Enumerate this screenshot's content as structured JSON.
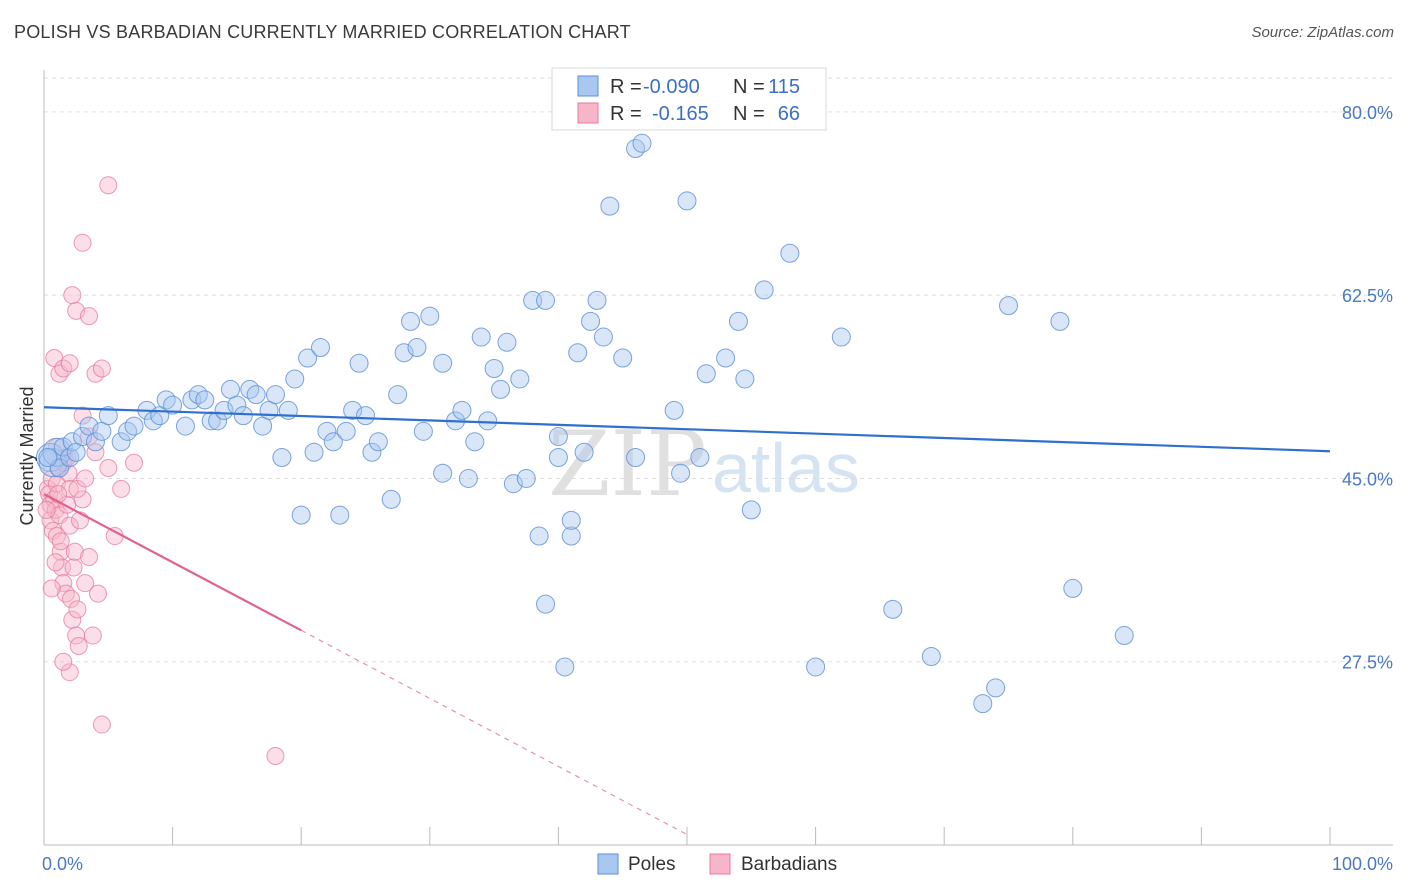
{
  "header": {
    "title": "POLISH VS BARBADIAN CURRENTLY MARRIED CORRELATION CHART",
    "source": "Source: ZipAtlas.com"
  },
  "legend": {
    "r_label": "R =",
    "n_label": "N =",
    "poles_r": "-0.090",
    "poles_n": "115",
    "barb_r": "-0.165",
    "barb_n": "66"
  },
  "watermark": {
    "zip": "ZIP",
    "atlas": "atlas"
  },
  "colors": {
    "poles_fill": "#a9c8f0",
    "poles_stroke": "#5b8fd8",
    "poles_line": "#2f6fcd",
    "barb_fill": "#f7b5c9",
    "barb_stroke": "#e8799c",
    "barb_line": "#e0628e",
    "tick_text": "#4a78c4",
    "grid": "#dddddd"
  },
  "chart_data": {
    "type": "scatter",
    "title": "POLISH VS BARBADIAN CURRENTLY MARRIED CORRELATION CHART",
    "xlabel": "",
    "ylabel": "Currently Married",
    "xlim": [
      0,
      100
    ],
    "ylim": [
      10,
      84
    ],
    "x_tick_labels": [
      "0.0%",
      "100.0%"
    ],
    "y_ticks": [
      27.5,
      45.0,
      62.5,
      80.0
    ],
    "y_tick_labels": [
      "27.5%",
      "45.0%",
      "62.5%",
      "80.0%"
    ],
    "series": [
      {
        "name": "Poles",
        "r": -0.09,
        "n": 115,
        "trend": {
          "x": [
            0,
            100
          ],
          "y": [
            51.8,
            47.6
          ],
          "dashed_from": null
        },
        "points": [
          [
            0.5,
            47
          ],
          [
            0.7,
            46.5
          ],
          [
            1,
            47.5
          ],
          [
            1.2,
            46
          ],
          [
            1.5,
            48
          ],
          [
            2,
            47
          ],
          [
            2.2,
            48.5
          ],
          [
            2.5,
            47.5
          ],
          [
            3,
            49
          ],
          [
            3.5,
            50
          ],
          [
            4,
            48.5
          ],
          [
            4.5,
            49.5
          ],
          [
            5,
            51
          ],
          [
            6,
            48.5
          ],
          [
            6.5,
            49.5
          ],
          [
            7,
            50
          ],
          [
            8,
            51.5
          ],
          [
            8.5,
            50.5
          ],
          [
            9,
            51
          ],
          [
            9.5,
            52.5
          ],
          [
            10,
            52
          ],
          [
            11,
            50
          ],
          [
            11.5,
            52.5
          ],
          [
            12,
            53
          ],
          [
            12.5,
            52.5
          ],
          [
            13,
            50.5
          ],
          [
            13.5,
            50.5
          ],
          [
            14,
            51.5
          ],
          [
            14.5,
            53.5
          ],
          [
            15,
            52
          ],
          [
            15.5,
            51
          ],
          [
            16,
            53.5
          ],
          [
            16.5,
            53
          ],
          [
            17,
            50
          ],
          [
            17.5,
            51.5
          ],
          [
            18,
            53
          ],
          [
            18.5,
            47
          ],
          [
            19,
            51.5
          ],
          [
            19.5,
            54.5
          ],
          [
            20,
            41.5
          ],
          [
            20.5,
            56.5
          ],
          [
            21,
            47.5
          ],
          [
            21.5,
            57.5
          ],
          [
            22,
            49.5
          ],
          [
            22.5,
            48.5
          ],
          [
            23,
            41.5
          ],
          [
            23.5,
            49.5
          ],
          [
            24,
            51.5
          ],
          [
            24.5,
            56
          ],
          [
            25,
            51
          ],
          [
            25.5,
            47.5
          ],
          [
            26,
            48.5
          ],
          [
            27,
            43
          ],
          [
            27.5,
            53
          ],
          [
            28,
            57
          ],
          [
            29,
            57.5
          ],
          [
            28.5,
            60
          ],
          [
            30,
            60.5
          ],
          [
            29.5,
            49.5
          ],
          [
            31,
            56
          ],
          [
            31,
            45.5
          ],
          [
            32,
            50.5
          ],
          [
            32.5,
            51.5
          ],
          [
            33,
            45
          ],
          [
            33.5,
            48.5
          ],
          [
            34,
            58.5
          ],
          [
            34.5,
            50.5
          ],
          [
            35,
            55.5
          ],
          [
            35.5,
            53.5
          ],
          [
            36,
            58
          ],
          [
            36.5,
            44.5
          ],
          [
            37,
            54.5
          ],
          [
            37.5,
            45
          ],
          [
            38,
            62
          ],
          [
            38.5,
            39.5
          ],
          [
            39,
            62
          ],
          [
            39,
            33
          ],
          [
            40,
            49
          ],
          [
            40,
            47
          ],
          [
            40.5,
            27
          ],
          [
            41,
            39.5
          ],
          [
            41,
            41
          ],
          [
            42,
            47.5
          ],
          [
            41.5,
            57
          ],
          [
            42.5,
            60
          ],
          [
            43,
            62
          ],
          [
            43.5,
            58.5
          ],
          [
            44,
            71
          ],
          [
            45,
            56.5
          ],
          [
            46,
            47
          ],
          [
            49,
            51.5
          ],
          [
            49.5,
            45.5
          ],
          [
            50,
            71.5
          ],
          [
            51,
            47
          ],
          [
            51.5,
            55
          ],
          [
            53,
            56.5
          ],
          [
            54,
            60
          ],
          [
            54.5,
            54.5
          ],
          [
            55,
            42
          ],
          [
            56,
            63
          ],
          [
            58,
            66.5
          ],
          [
            60,
            27
          ],
          [
            62,
            58.5
          ],
          [
            66,
            32.5
          ],
          [
            69,
            28
          ],
          [
            73,
            23.5
          ],
          [
            74,
            25
          ],
          [
            75,
            61.5
          ],
          [
            79,
            60
          ],
          [
            80,
            34.5
          ],
          [
            84,
            30
          ],
          [
            46,
            76.5
          ],
          [
            46.5,
            77
          ],
          [
            0.3,
            47
          ]
        ]
      },
      {
        "name": "Barbadians",
        "r": -0.165,
        "n": 66,
        "trend": {
          "x": [
            0,
            20,
            50
          ],
          "y": [
            43.5,
            30.5,
            11
          ],
          "dashed_from": 20
        },
        "points": [
          [
            0.3,
            44
          ],
          [
            0.4,
            43.5
          ],
          [
            0.5,
            42.5
          ],
          [
            0.5,
            41
          ],
          [
            0.6,
            45
          ],
          [
            0.7,
            40
          ],
          [
            0.8,
            43
          ],
          [
            0.9,
            42
          ],
          [
            1,
            44.5
          ],
          [
            1,
            39.5
          ],
          [
            1.1,
            46
          ],
          [
            1.2,
            41.5
          ],
          [
            1.3,
            38
          ],
          [
            1.4,
            36.5
          ],
          [
            1.5,
            35
          ],
          [
            1.6,
            47
          ],
          [
            1.7,
            34
          ],
          [
            1.8,
            42.5
          ],
          [
            1.9,
            45.5
          ],
          [
            2,
            40.5
          ],
          [
            2.1,
            33.5
          ],
          [
            2.2,
            31.5
          ],
          [
            2.3,
            36.5
          ],
          [
            2.4,
            38
          ],
          [
            2.5,
            30
          ],
          [
            2.6,
            32.5
          ],
          [
            2.7,
            29
          ],
          [
            2.8,
            41
          ],
          [
            3,
            43
          ],
          [
            3.2,
            35
          ],
          [
            3.5,
            37.5
          ],
          [
            0.8,
            56.5
          ],
          [
            1.2,
            55
          ],
          [
            1.5,
            55.5
          ],
          [
            2,
            56
          ],
          [
            2.5,
            61
          ],
          [
            3,
            67.5
          ],
          [
            3.5,
            60.5
          ],
          [
            2.2,
            62.5
          ],
          [
            4,
            55
          ],
          [
            4.5,
            55.5
          ],
          [
            5,
            46
          ],
          [
            3,
            51
          ],
          [
            3.5,
            49
          ],
          [
            4,
            47.5
          ],
          [
            1,
            48
          ],
          [
            1.5,
            46.5
          ],
          [
            2,
            44
          ],
          [
            6,
            44
          ],
          [
            5,
            73
          ],
          [
            7,
            46.5
          ],
          [
            4.5,
            21.5
          ],
          [
            18,
            18.5
          ],
          [
            2,
            26.5
          ],
          [
            1.5,
            27.5
          ],
          [
            3.8,
            30
          ],
          [
            4.2,
            34
          ],
          [
            0.6,
            34.5
          ],
          [
            0.9,
            37
          ],
          [
            1.3,
            39
          ],
          [
            2.6,
            44
          ],
          [
            3.2,
            45
          ],
          [
            5.5,
            39.5
          ],
          [
            1.8,
            47
          ],
          [
            1.1,
            43.5
          ],
          [
            0.2,
            42
          ]
        ]
      }
    ]
  },
  "bottom_legend": {
    "poles": "Poles",
    "barbadians": "Barbadians"
  }
}
